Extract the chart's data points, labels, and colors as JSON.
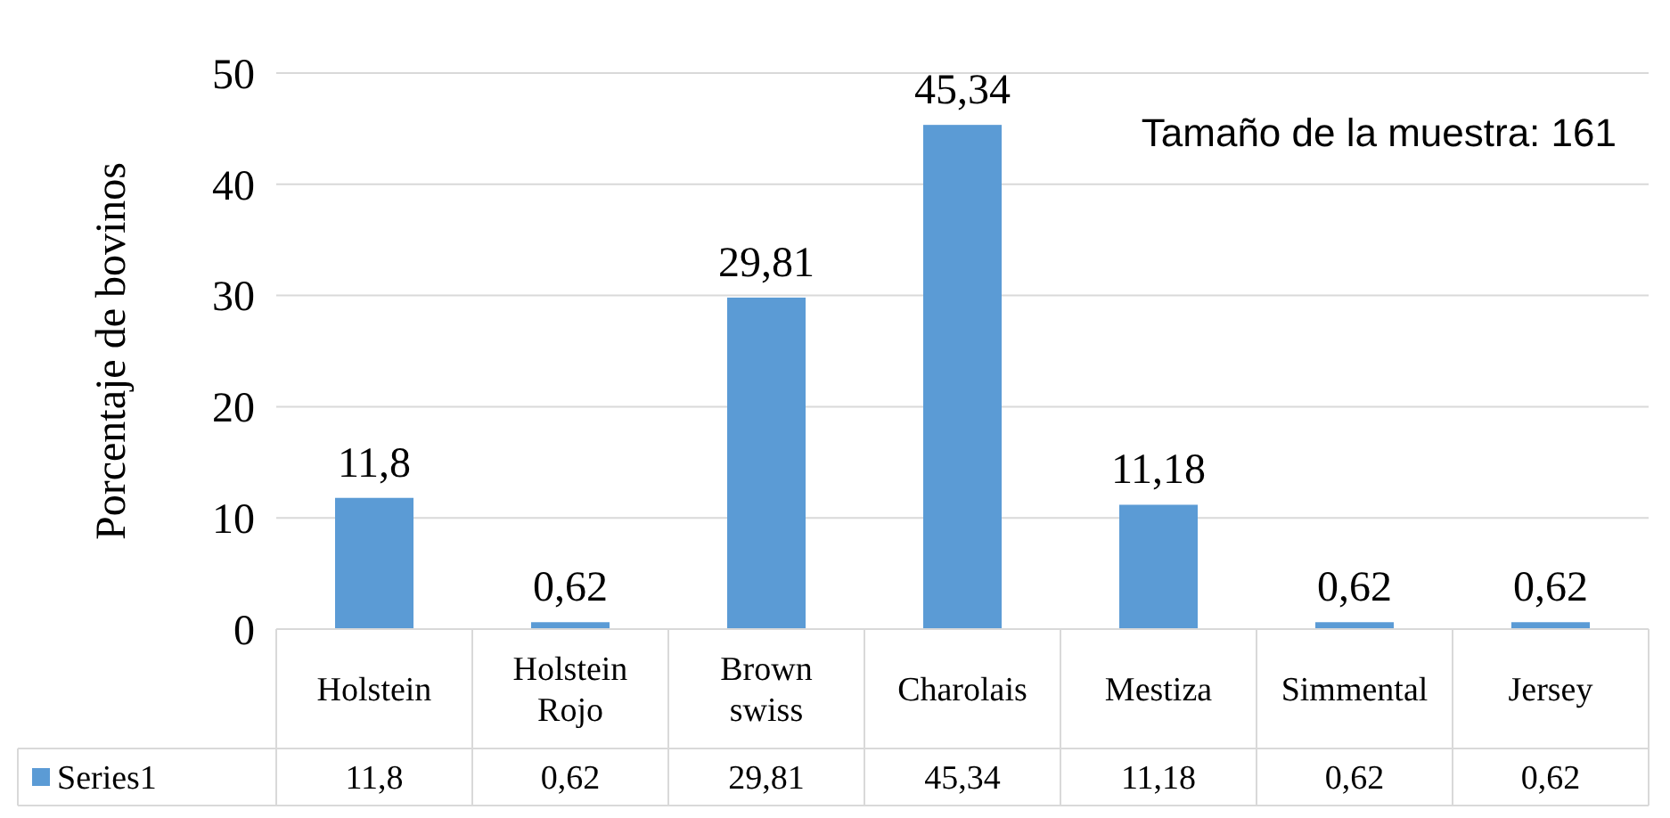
{
  "chart_data": {
    "type": "bar",
    "ylabel": "Porcentaje de bovinos",
    "categories": [
      "Holstein",
      "Holstein Rojo",
      "Brown swiss",
      "Charolais",
      "Mestiza",
      "Simmental",
      "Jersey"
    ],
    "series": [
      {
        "name": "Series1",
        "color": "#5b9bd5",
        "values": [
          11.8,
          0.62,
          29.81,
          45.34,
          11.18,
          0.62,
          0.62
        ]
      }
    ],
    "value_labels": [
      "11,8",
      "0,62",
      "29,81",
      "45,34",
      "11,18",
      "0,62",
      "0,62"
    ],
    "ylim": [
      0,
      50
    ],
    "yticks": [
      0,
      10,
      20,
      30,
      40,
      50
    ],
    "grid": "y",
    "legend": "bottom",
    "annotations": [
      "Tamaño de la muestra: 161"
    ]
  }
}
